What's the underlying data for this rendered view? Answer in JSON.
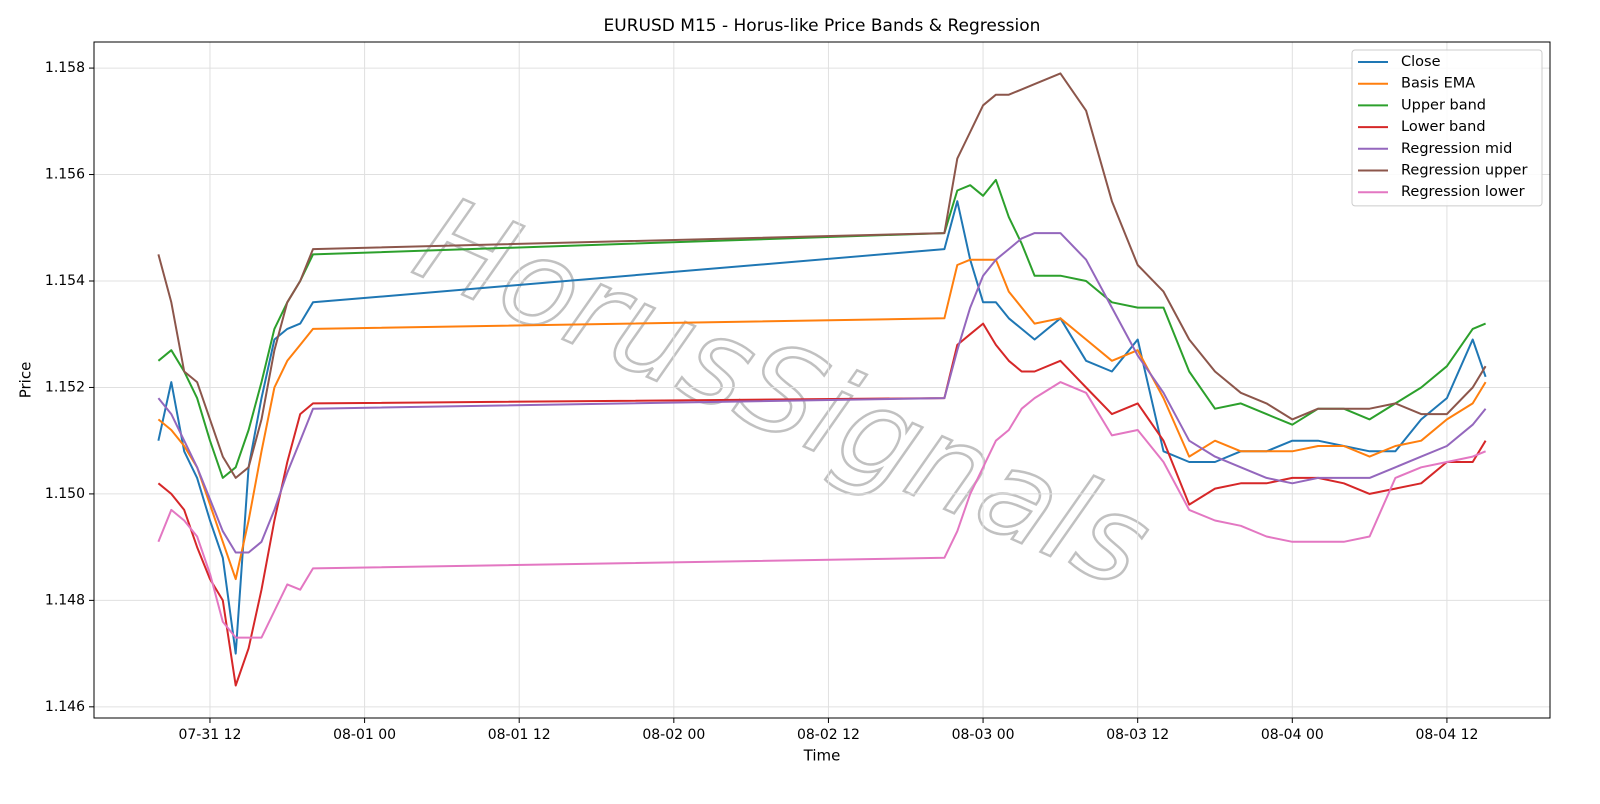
{
  "chart_data": {
    "type": "line",
    "title": "EURUSD M15 - Horus-like Price Bands & Regression",
    "xlabel": "Time",
    "ylabel": "Price",
    "watermark": "HorusSignals",
    "grid": true,
    "legend": "upper right",
    "xlim": [
      "07-31 03",
      "08-04 20"
    ],
    "xticks": [
      "07-31 12",
      "08-01 00",
      "08-01 12",
      "08-02 00",
      "08-02 12",
      "08-03 00",
      "08-03 12",
      "08-04 00",
      "08-04 12"
    ],
    "ylim": [
      1.14579,
      1.15849
    ],
    "yticks": [
      1.146,
      1.148,
      {
        "value": 1.15,
        "label": "1.150"
      },
      1.152,
      1.154,
      1.156,
      1.158
    ],
    "x": [
      "07-31 08",
      "07-31 09",
      "07-31 10",
      "07-31 11",
      "07-31 12",
      "07-31 13",
      "07-31 14",
      "07-31 15",
      "07-31 16",
      "07-31 17",
      "07-31 18",
      "07-31 19",
      "07-31 20",
      "08-02 21",
      "08-02 22",
      "08-02 23",
      "08-03 00",
      "08-03 01",
      "08-03 02",
      "08-03 03",
      "08-03 04",
      "08-03 06",
      "08-03 08",
      "08-03 10",
      "08-03 12",
      "08-03 14",
      "08-03 16",
      "08-03 18",
      "08-03 20",
      "08-03 22",
      "08-04 00",
      "08-04 02",
      "08-04 04",
      "08-04 06",
      "08-04 08",
      "08-04 10",
      "08-04 12",
      "08-04 14",
      "08-04 15"
    ],
    "series": [
      {
        "name": "Close",
        "color": "#1f77b4",
        "values": [
          1.151,
          1.1521,
          1.1508,
          1.1503,
          1.1495,
          1.1488,
          1.147,
          1.1505,
          1.1518,
          1.1529,
          1.1531,
          1.1532,
          1.1536,
          1.1546,
          1.1555,
          1.1544,
          1.1536,
          1.1536,
          1.1533,
          1.1531,
          1.1529,
          1.1533,
          1.1525,
          1.1523,
          1.1529,
          1.1508,
          1.1506,
          1.1506,
          1.1508,
          1.1508,
          1.151,
          1.151,
          1.1509,
          1.1508,
          1.1508,
          1.1514,
          1.1518,
          1.1529,
          1.1522
        ]
      },
      {
        "name": "Basis EMA",
        "color": "#ff7f0e",
        "values": [
          1.1514,
          1.1512,
          1.1509,
          1.1505,
          1.1498,
          1.1491,
          1.1484,
          1.1495,
          1.1508,
          1.152,
          1.1525,
          1.1528,
          1.1531,
          1.1533,
          1.1543,
          1.1544,
          1.1544,
          1.1544,
          1.1538,
          1.1535,
          1.1532,
          1.1533,
          1.1529,
          1.1525,
          1.1527,
          1.1518,
          1.1507,
          1.151,
          1.1508,
          1.1508,
          1.1508,
          1.1509,
          1.1509,
          1.1507,
          1.1509,
          1.151,
          1.1514,
          1.1517,
          1.1521
        ]
      },
      {
        "name": "Upper band",
        "color": "#2ca02c",
        "values": [
          1.1525,
          1.1527,
          1.1523,
          1.1518,
          1.151,
          1.1503,
          1.1505,
          1.1512,
          1.1521,
          1.1531,
          1.1536,
          1.154,
          1.1545,
          1.1549,
          1.1557,
          1.1558,
          1.1556,
          1.1559,
          1.1552,
          1.1547,
          1.1541,
          1.1541,
          1.154,
          1.1536,
          1.1535,
          1.1535,
          1.1523,
          1.1516,
          1.1517,
          1.1515,
          1.1513,
          1.1516,
          1.1516,
          1.1514,
          1.1517,
          1.152,
          1.1524,
          1.1531,
          1.1532
        ]
      },
      {
        "name": "Lower band",
        "color": "#d62728",
        "values": [
          1.1502,
          1.15,
          1.1497,
          1.149,
          1.1484,
          1.148,
          1.1464,
          1.1471,
          1.1482,
          1.1495,
          1.1506,
          1.1515,
          1.1517,
          1.1518,
          1.1528,
          1.153,
          1.1532,
          1.1528,
          1.1525,
          1.1523,
          1.1523,
          1.1525,
          1.152,
          1.1515,
          1.1517,
          1.151,
          1.1498,
          1.1501,
          1.1502,
          1.1502,
          1.1503,
          1.1503,
          1.1502,
          1.15,
          1.1501,
          1.1502,
          1.1506,
          1.1506,
          1.151
        ]
      },
      {
        "name": "Regression mid",
        "color": "#9467bd",
        "values": [
          1.1518,
          1.1515,
          1.151,
          1.1505,
          1.1499,
          1.1493,
          1.1489,
          1.1489,
          1.1491,
          1.1497,
          1.1504,
          1.151,
          1.1516,
          1.1518,
          1.1527,
          1.1535,
          1.1541,
          1.1544,
          1.1546,
          1.1548,
          1.1549,
          1.1549,
          1.1544,
          1.1535,
          1.1526,
          1.1519,
          1.151,
          1.1507,
          1.1505,
          1.1503,
          1.1502,
          1.1503,
          1.1503,
          1.1503,
          1.1505,
          1.1507,
          1.1509,
          1.1513,
          1.1516
        ]
      },
      {
        "name": "Regression upper",
        "color": "#8c564b",
        "values": [
          1.1545,
          1.1536,
          1.1523,
          1.1521,
          1.1514,
          1.1507,
          1.1503,
          1.1505,
          1.1514,
          1.1527,
          1.1536,
          1.154,
          1.1546,
          1.1549,
          1.1563,
          1.1568,
          1.1573,
          1.1575,
          1.1575,
          1.1576,
          1.1577,
          1.1579,
          1.1572,
          1.1555,
          1.1543,
          1.1538,
          1.1529,
          1.1523,
          1.1519,
          1.1517,
          1.1514,
          1.1516,
          1.1516,
          1.1516,
          1.1517,
          1.1515,
          1.1515,
          1.152,
          1.1524
        ]
      },
      {
        "name": "Regression lower",
        "color": "#e377c2",
        "values": [
          1.1491,
          1.1497,
          1.1495,
          1.1492,
          1.1485,
          1.1476,
          1.1473,
          1.1473,
          1.1473,
          1.1478,
          1.1483,
          1.1482,
          1.1486,
          1.1488,
          1.1493,
          1.15,
          1.1505,
          1.151,
          1.1512,
          1.1516,
          1.1518,
          1.1521,
          1.1519,
          1.1511,
          1.1512,
          1.1506,
          1.1497,
          1.1495,
          1.1494,
          1.1492,
          1.1491,
          1.1491,
          1.1491,
          1.1492,
          1.1503,
          1.1505,
          1.1506,
          1.1507,
          1.1508
        ]
      }
    ]
  }
}
